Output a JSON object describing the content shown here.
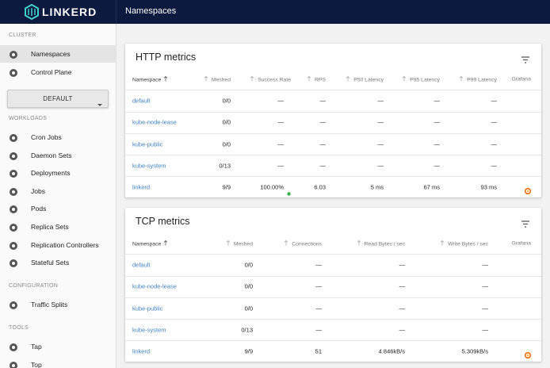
{
  "header": {
    "logo": "LINKERD",
    "title": "Namespaces"
  },
  "sidebar": {
    "namespace_select": "DEFAULT",
    "groups": [
      {
        "title": "CLUSTER",
        "items": [
          "Namespaces",
          "Control Plane"
        ]
      },
      {
        "title": "WORKLOADS",
        "items": [
          "Cron Jobs",
          "Daemon Sets",
          "Deployments",
          "Jobs",
          "Pods",
          "Replica Sets",
          "Replication Controllers",
          "Stateful Sets"
        ]
      },
      {
        "title": "CONFIGURATION",
        "items": [
          "Traffic Splits"
        ]
      },
      {
        "title": "TOOLS",
        "items": [
          "Tap",
          "Top"
        ]
      }
    ]
  },
  "tables": [
    {
      "title": "HTTP metrics",
      "columns": [
        "Namespace",
        "Meshed",
        "Success Rate",
        "RPS",
        "P50 Latency",
        "P95 Latency",
        "P99 Latency",
        "Grafana"
      ],
      "rows": [
        [
          "default",
          "0/0",
          "—",
          "—",
          "—",
          "—",
          "—"
        ],
        [
          "kube-node-lease",
          "0/0",
          "—",
          "—",
          "—",
          "—",
          "—"
        ],
        [
          "kube-public",
          "0/0",
          "—",
          "—",
          "—",
          "—",
          "—"
        ],
        [
          "kube-system",
          "0/13",
          "—",
          "—",
          "—",
          "—",
          "—"
        ],
        [
          "linkerd",
          "9/9",
          "100.00%",
          "6.03",
          "5 ms",
          "67 ms",
          "93 ms"
        ]
      ]
    },
    {
      "title": "TCP metrics",
      "columns": [
        "Namespace",
        "Meshed",
        "Connections",
        "Read Bytes / sec",
        "Write Bytes / sec",
        "Grafana"
      ],
      "rows": [
        [
          "default",
          "0/0",
          "—",
          "—",
          "—"
        ],
        [
          "kube-node-lease",
          "0/0",
          "—",
          "—",
          "—"
        ],
        [
          "kube-public",
          "0/0",
          "—",
          "—",
          "—"
        ],
        [
          "kube-system",
          "0/13",
          "—",
          "—",
          "—"
        ],
        [
          "linkerd",
          "9/9",
          "51",
          "4.846kB/s",
          "5.309kB/s"
        ]
      ]
    }
  ]
}
